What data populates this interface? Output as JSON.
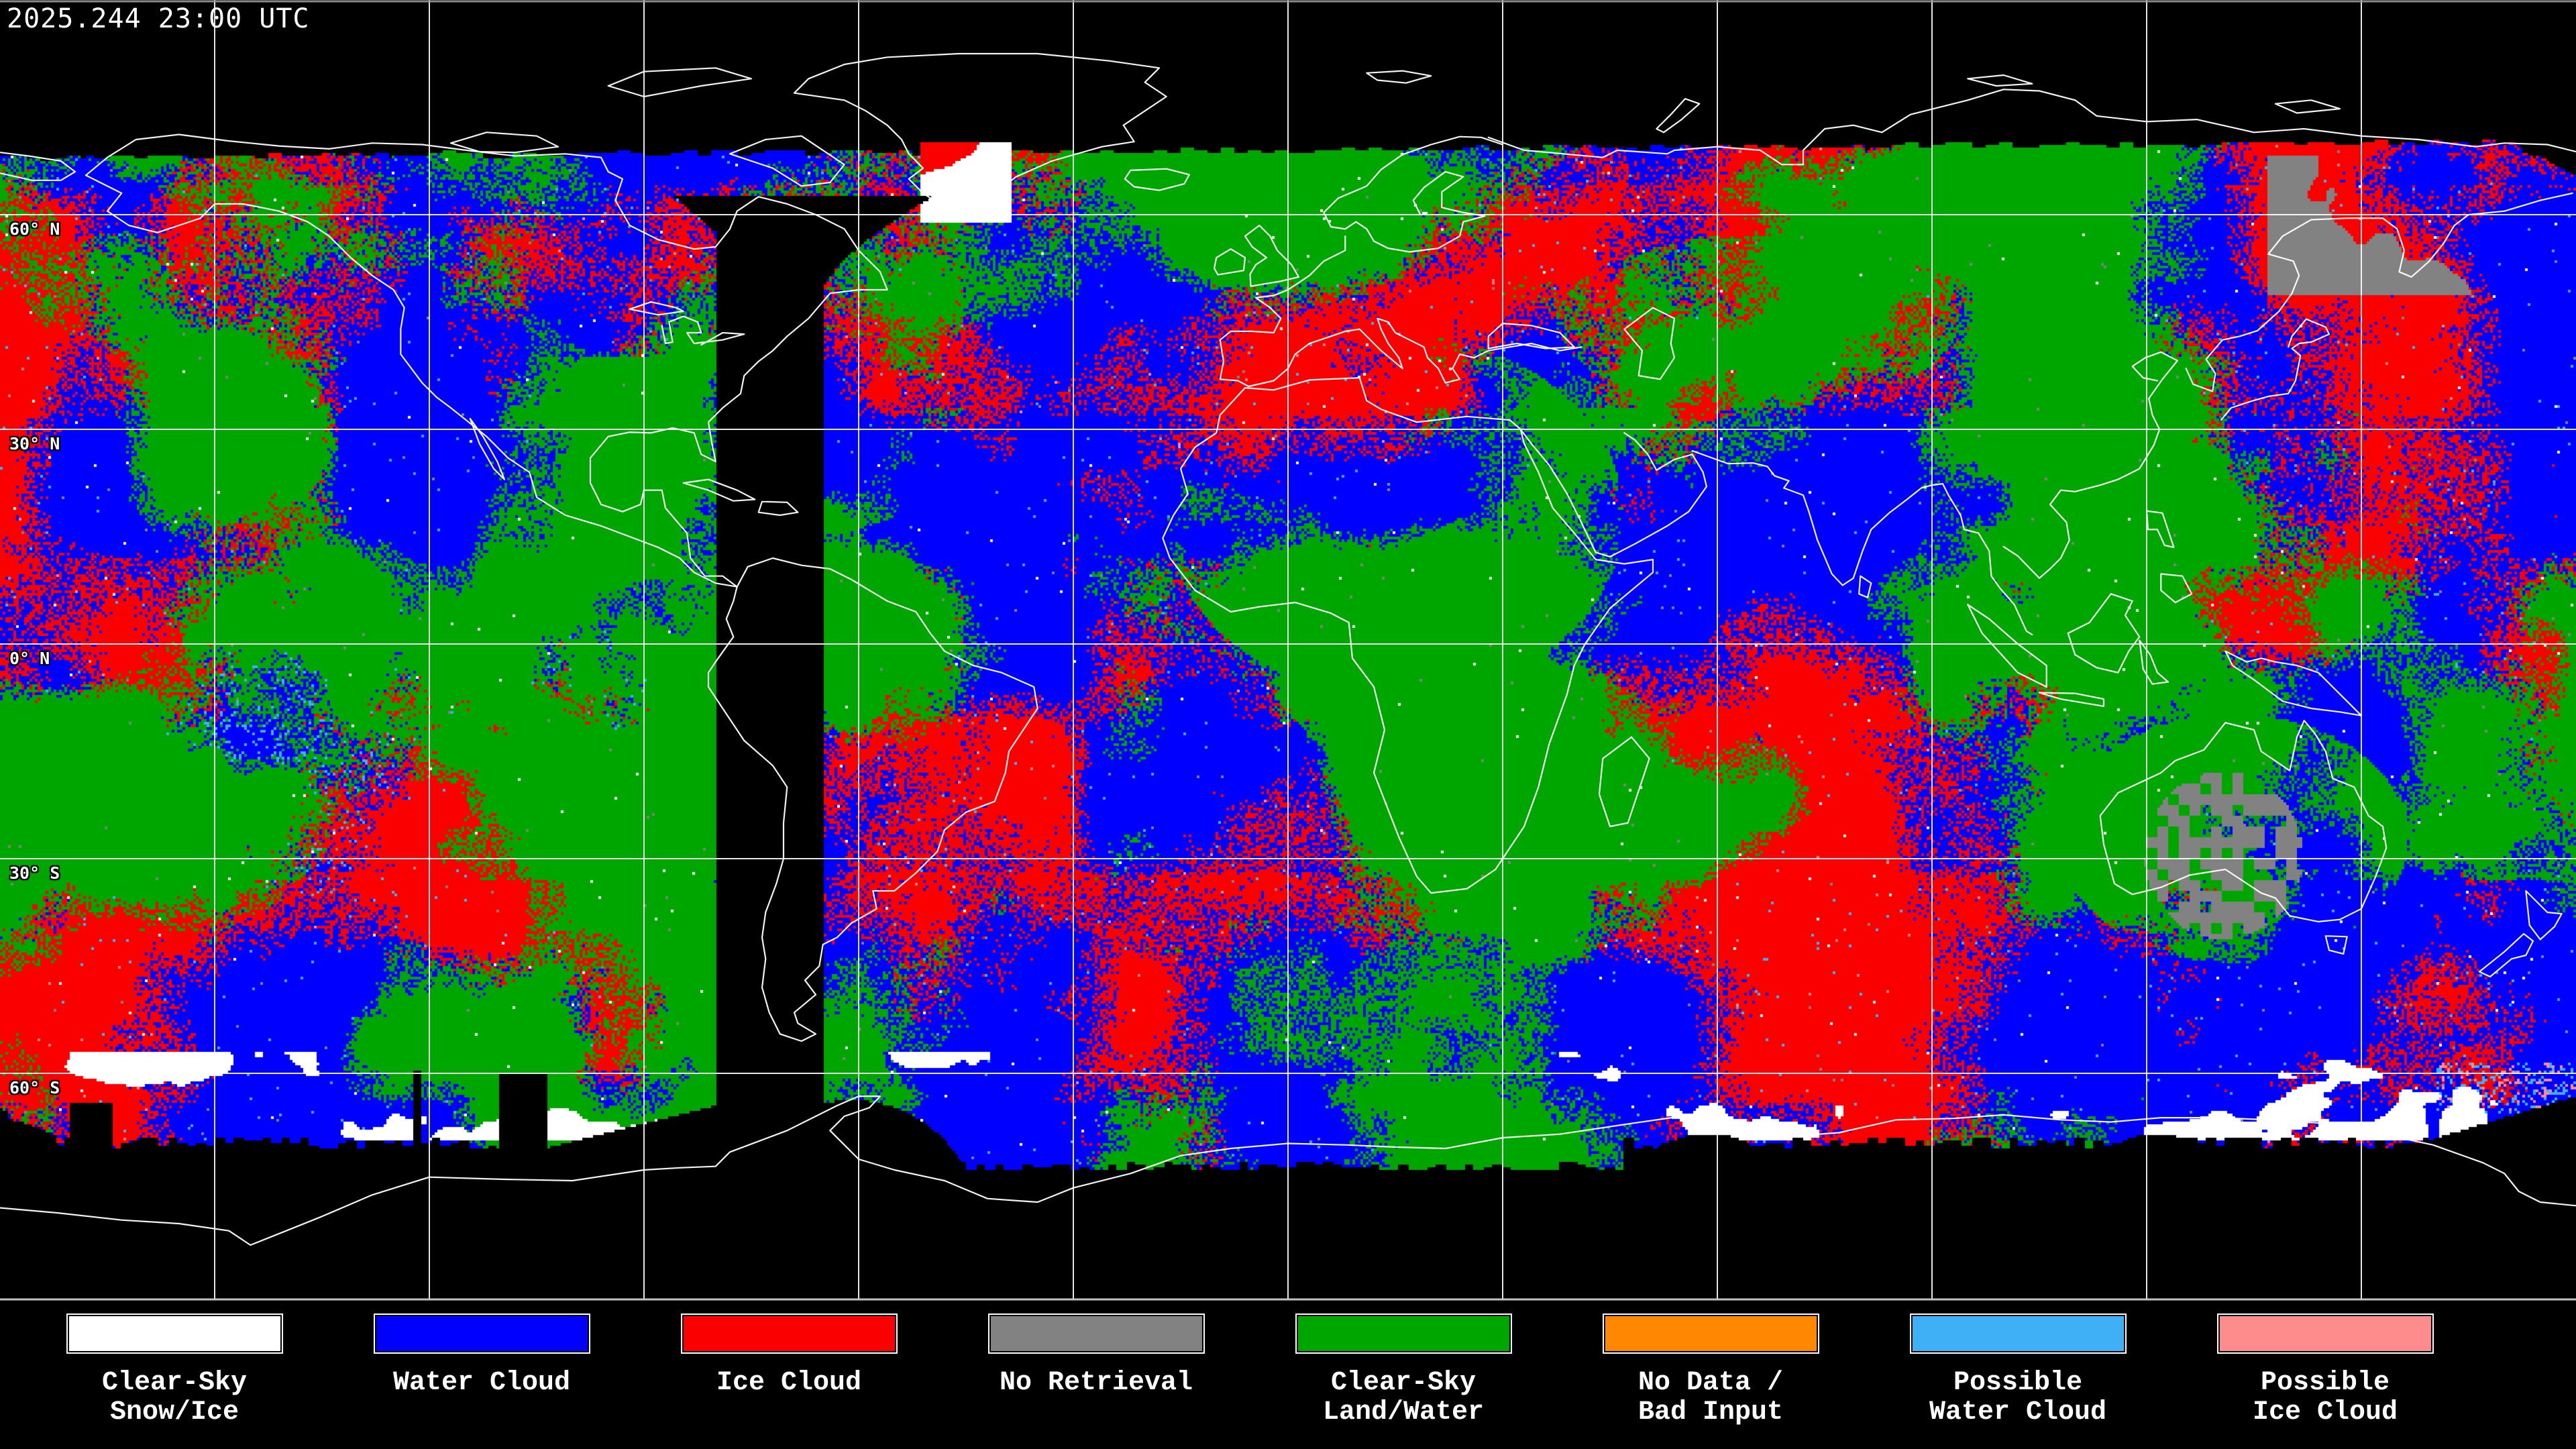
{
  "header": {
    "timestamp": "2025.244 23:00 UTC"
  },
  "map": {
    "latitude_labels": [
      "60° N",
      "30° N",
      "0° N",
      "30° S",
      "60° S"
    ],
    "grid": {
      "lat_interval_deg": 30,
      "lon_interval_deg": 30
    }
  },
  "palette": {
    "clear_snow_ice": "#ffffff",
    "water_cloud": "#0000ff",
    "ice_cloud": "#fb0000",
    "no_retrieval": "#828282",
    "clear_land_water": "#00a600",
    "no_data_bad_input": "#ff8800",
    "possible_water_cloud": "#40b0f6",
    "possible_ice_cloud": "#ff8c8c",
    "background": "#000000",
    "coastline": "#ffffff",
    "gridline": "#ffffff"
  },
  "legend": {
    "items": [
      {
        "line1": "Clear-Sky",
        "line2": "Snow/Ice",
        "color": "#ffffff"
      },
      {
        "line1": "Water Cloud",
        "line2": "",
        "color": "#0000ff"
      },
      {
        "line1": "Ice Cloud",
        "line2": "",
        "color": "#fb0000"
      },
      {
        "line1": "No Retrieval",
        "line2": "",
        "color": "#828282"
      },
      {
        "line1": "Clear-Sky",
        "line2": "Land/Water",
        "color": "#00a600"
      },
      {
        "line1": "No Data /",
        "line2": "Bad Input",
        "color": "#ff8800"
      },
      {
        "line1": "Possible",
        "line2": "Water Cloud",
        "color": "#40b0f6"
      },
      {
        "line1": "Possible",
        "line2": "Ice Cloud",
        "color": "#ff8c8c"
      }
    ]
  }
}
